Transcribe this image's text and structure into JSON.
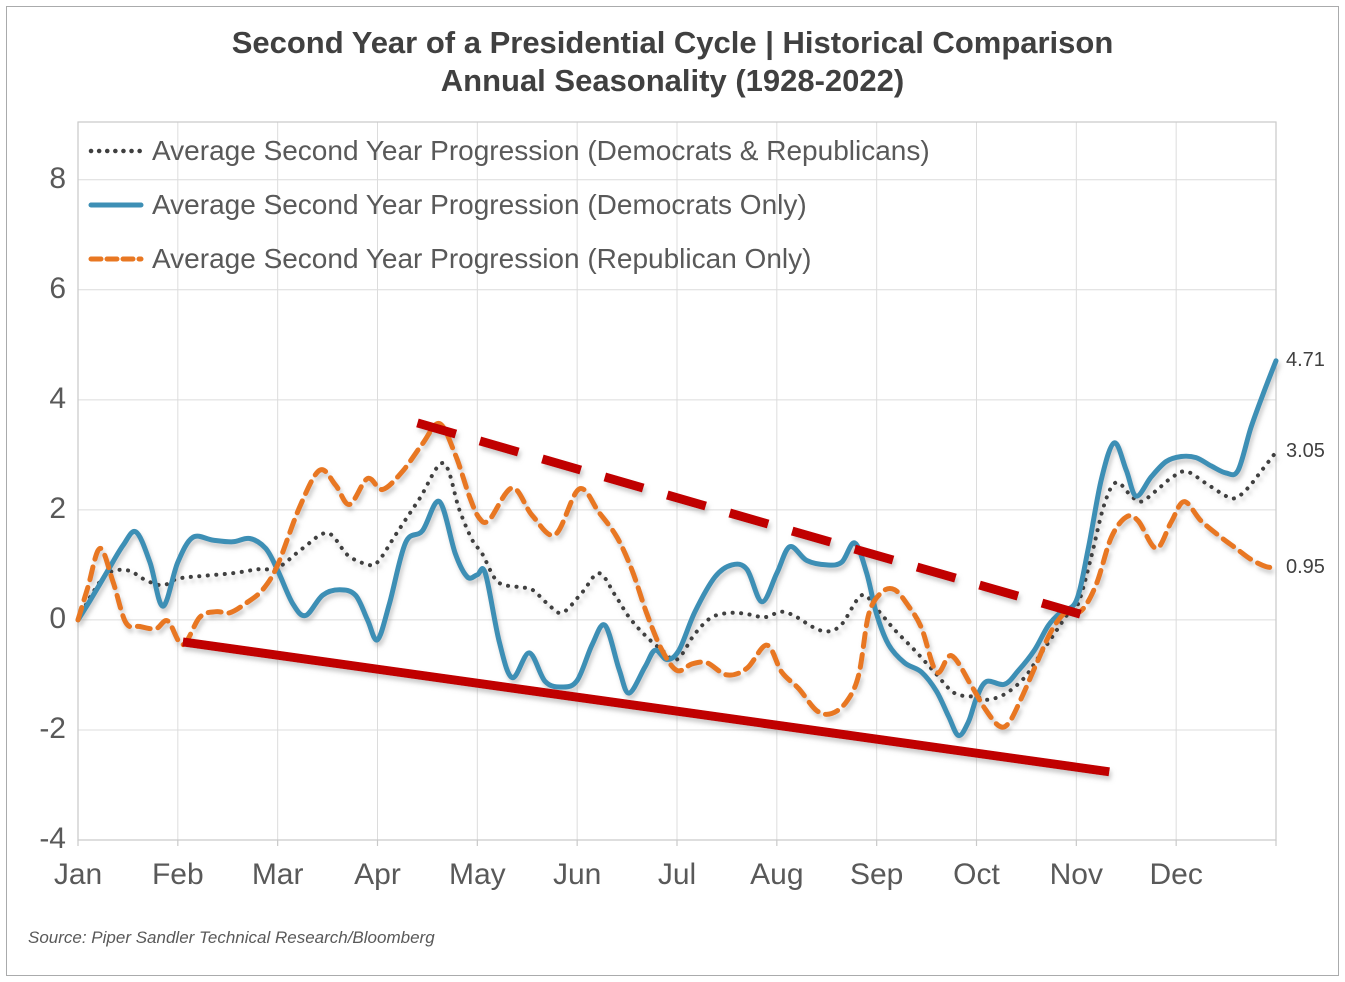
{
  "title": {
    "line1": "Second Year of a Presidential Cycle | Historical Comparison",
    "line2": "Annual Seasonality (1928-2022)"
  },
  "source": "Source: Piper Sandler Technical Research/Bloomberg",
  "colors": {
    "average_both": "#3f3f3f",
    "democrats": "#3d8fb5",
    "republicans": "#e87722",
    "trendline_red": "#c00000",
    "grid": "#dcdcdc",
    "plot_border": "#c9c9c9",
    "text_dark": "#404040",
    "text_gray": "#595959"
  },
  "legend": {
    "items": [
      {
        "label": "Average Second Year Progression (Democrats & Republicans)",
        "style": "dotted",
        "color": "#3f3f3f"
      },
      {
        "label": "Average Second Year Progression (Democrats Only)",
        "style": "solid",
        "color": "#3d8fb5"
      },
      {
        "label": "Average Second Year Progression (Republican Only)",
        "style": "dashed",
        "color": "#e87722"
      }
    ]
  },
  "chart_data": {
    "type": "line",
    "title": "Second Year of a Presidential Cycle | Historical Comparison — Annual Seasonality (1928-2022)",
    "x_unit": "months, 0 = Jan 1 through 12 = Dec 31",
    "x_tick_labels": [
      "Jan",
      "Feb",
      "Mar",
      "Apr",
      "May",
      "Jun",
      "Jul",
      "Aug",
      "Sep",
      "Oct",
      "Nov",
      "Dec"
    ],
    "y_ticks": [
      8,
      6,
      4,
      2,
      0,
      -2,
      -4
    ],
    "ylim": [
      -4,
      9.05
    ],
    "xlim": [
      0,
      12
    ],
    "grid": true,
    "legend_position": "top-left-inside",
    "series": [
      {
        "name": "Average Second Year Progression (Democrats & Republicans)",
        "color": "#3f3f3f",
        "dash": "dot",
        "width": 4,
        "end_value": 3.05,
        "points": [
          [
            0,
            0
          ],
          [
            0.15,
            0.5
          ],
          [
            0.3,
            0.85
          ],
          [
            0.5,
            0.9
          ],
          [
            0.68,
            0.72
          ],
          [
            0.85,
            0.63
          ],
          [
            1.0,
            0.75
          ],
          [
            1.25,
            0.8
          ],
          [
            1.55,
            0.85
          ],
          [
            1.8,
            0.92
          ],
          [
            2.0,
            0.95
          ],
          [
            2.25,
            1.3
          ],
          [
            2.5,
            1.58
          ],
          [
            2.7,
            1.18
          ],
          [
            2.88,
            1.02
          ],
          [
            3.0,
            1.05
          ],
          [
            3.2,
            1.6
          ],
          [
            3.42,
            2.2
          ],
          [
            3.66,
            2.85
          ],
          [
            3.82,
            2.0
          ],
          [
            3.95,
            1.45
          ],
          [
            4.05,
            1.2
          ],
          [
            4.2,
            0.7
          ],
          [
            4.4,
            0.6
          ],
          [
            4.55,
            0.55
          ],
          [
            4.7,
            0.3
          ],
          [
            4.85,
            0.13
          ],
          [
            5.05,
            0.5
          ],
          [
            5.22,
            0.85
          ],
          [
            5.38,
            0.45
          ],
          [
            5.52,
            0.05
          ],
          [
            5.68,
            -0.28
          ],
          [
            5.85,
            -0.55
          ],
          [
            6.0,
            -0.72
          ],
          [
            6.18,
            -0.25
          ],
          [
            6.35,
            0.05
          ],
          [
            6.55,
            0.13
          ],
          [
            6.72,
            0.1
          ],
          [
            6.88,
            0.05
          ],
          [
            7.05,
            0.15
          ],
          [
            7.2,
            0.05
          ],
          [
            7.35,
            -0.12
          ],
          [
            7.5,
            -0.21
          ],
          [
            7.65,
            -0.08
          ],
          [
            7.85,
            0.45
          ],
          [
            8.0,
            0.2
          ],
          [
            8.18,
            -0.18
          ],
          [
            8.38,
            -0.55
          ],
          [
            8.58,
            -0.95
          ],
          [
            8.78,
            -1.33
          ],
          [
            9.0,
            -1.4
          ],
          [
            9.12,
            -1.45
          ],
          [
            9.3,
            -1.33
          ],
          [
            9.48,
            -1.05
          ],
          [
            9.62,
            -0.68
          ],
          [
            9.78,
            -0.25
          ],
          [
            9.92,
            0.12
          ],
          [
            10.02,
            0.3
          ],
          [
            10.15,
            1.15
          ],
          [
            10.28,
            2.1
          ],
          [
            10.4,
            2.5
          ],
          [
            10.55,
            2.25
          ],
          [
            10.65,
            2.15
          ],
          [
            10.8,
            2.35
          ],
          [
            10.95,
            2.58
          ],
          [
            11.1,
            2.7
          ],
          [
            11.3,
            2.48
          ],
          [
            11.5,
            2.25
          ],
          [
            11.6,
            2.22
          ],
          [
            11.72,
            2.4
          ],
          [
            11.85,
            2.7
          ],
          [
            12,
            3.05
          ]
        ]
      },
      {
        "name": "Average Second Year Progression (Democrats Only)",
        "color": "#3d8fb5",
        "dash": "solid",
        "width": 5,
        "end_value": 4.71,
        "points": [
          [
            0,
            0
          ],
          [
            0.12,
            0.35
          ],
          [
            0.3,
            0.9
          ],
          [
            0.45,
            1.35
          ],
          [
            0.58,
            1.6
          ],
          [
            0.72,
            1.05
          ],
          [
            0.85,
            0.25
          ],
          [
            1.0,
            1.05
          ],
          [
            1.15,
            1.5
          ],
          [
            1.35,
            1.45
          ],
          [
            1.55,
            1.42
          ],
          [
            1.72,
            1.48
          ],
          [
            1.88,
            1.3
          ],
          [
            2.0,
            0.9
          ],
          [
            2.15,
            0.3
          ],
          [
            2.28,
            0.08
          ],
          [
            2.45,
            0.45
          ],
          [
            2.62,
            0.55
          ],
          [
            2.78,
            0.45
          ],
          [
            2.9,
            0.0
          ],
          [
            3.0,
            -0.36
          ],
          [
            3.12,
            0.3
          ],
          [
            3.28,
            1.4
          ],
          [
            3.45,
            1.62
          ],
          [
            3.62,
            2.15
          ],
          [
            3.78,
            1.2
          ],
          [
            3.9,
            0.78
          ],
          [
            4.0,
            0.82
          ],
          [
            4.08,
            0.85
          ],
          [
            4.22,
            -0.4
          ],
          [
            4.35,
            -1.05
          ],
          [
            4.52,
            -0.6
          ],
          [
            4.68,
            -1.12
          ],
          [
            4.85,
            -1.22
          ],
          [
            5.0,
            -1.1
          ],
          [
            5.15,
            -0.45
          ],
          [
            5.28,
            -0.1
          ],
          [
            5.42,
            -0.9
          ],
          [
            5.52,
            -1.33
          ],
          [
            5.68,
            -0.85
          ],
          [
            5.78,
            -0.55
          ],
          [
            5.9,
            -0.72
          ],
          [
            6.02,
            -0.55
          ],
          [
            6.18,
            0.15
          ],
          [
            6.38,
            0.78
          ],
          [
            6.55,
            1.0
          ],
          [
            6.7,
            0.92
          ],
          [
            6.85,
            0.33
          ],
          [
            7.0,
            0.85
          ],
          [
            7.13,
            1.33
          ],
          [
            7.3,
            1.08
          ],
          [
            7.5,
            1.0
          ],
          [
            7.65,
            1.05
          ],
          [
            7.78,
            1.4
          ],
          [
            7.9,
            0.85
          ],
          [
            8.0,
            0.1
          ],
          [
            8.12,
            -0.45
          ],
          [
            8.28,
            -0.78
          ],
          [
            8.45,
            -0.95
          ],
          [
            8.6,
            -1.3
          ],
          [
            8.72,
            -1.75
          ],
          [
            8.82,
            -2.1
          ],
          [
            8.92,
            -1.85
          ],
          [
            9.0,
            -1.42
          ],
          [
            9.1,
            -1.12
          ],
          [
            9.28,
            -1.17
          ],
          [
            9.42,
            -0.92
          ],
          [
            9.58,
            -0.55
          ],
          [
            9.72,
            -0.1
          ],
          [
            9.85,
            0.15
          ],
          [
            10.0,
            0.35
          ],
          [
            10.12,
            1.3
          ],
          [
            10.25,
            2.55
          ],
          [
            10.38,
            3.22
          ],
          [
            10.5,
            2.72
          ],
          [
            10.6,
            2.25
          ],
          [
            10.75,
            2.6
          ],
          [
            10.9,
            2.88
          ],
          [
            11.05,
            2.97
          ],
          [
            11.2,
            2.95
          ],
          [
            11.35,
            2.8
          ],
          [
            11.5,
            2.67
          ],
          [
            11.62,
            2.72
          ],
          [
            11.75,
            3.5
          ],
          [
            11.88,
            4.15
          ],
          [
            12,
            4.71
          ]
        ]
      },
      {
        "name": "Average Second Year Progression (Republican Only)",
        "color": "#e87722",
        "dash": "dash",
        "width": 5,
        "end_value": 0.95,
        "points": [
          [
            0,
            0
          ],
          [
            0.1,
            0.6
          ],
          [
            0.22,
            1.3
          ],
          [
            0.35,
            0.7
          ],
          [
            0.48,
            -0.05
          ],
          [
            0.62,
            -0.12
          ],
          [
            0.78,
            -0.16
          ],
          [
            0.9,
            -0.02
          ],
          [
            1.05,
            -0.45
          ],
          [
            1.22,
            0.05
          ],
          [
            1.38,
            0.15
          ],
          [
            1.52,
            0.13
          ],
          [
            1.68,
            0.3
          ],
          [
            1.85,
            0.55
          ],
          [
            2.0,
            1.0
          ],
          [
            2.22,
            2.05
          ],
          [
            2.42,
            2.72
          ],
          [
            2.58,
            2.45
          ],
          [
            2.72,
            2.1
          ],
          [
            2.9,
            2.57
          ],
          [
            3.05,
            2.37
          ],
          [
            3.25,
            2.7
          ],
          [
            3.45,
            3.2
          ],
          [
            3.62,
            3.57
          ],
          [
            3.78,
            3.0
          ],
          [
            3.92,
            2.25
          ],
          [
            4.02,
            1.85
          ],
          [
            4.12,
            1.82
          ],
          [
            4.35,
            2.4
          ],
          [
            4.55,
            1.9
          ],
          [
            4.78,
            1.55
          ],
          [
            5.02,
            2.38
          ],
          [
            5.22,
            1.95
          ],
          [
            5.4,
            1.5
          ],
          [
            5.55,
            0.9
          ],
          [
            5.7,
            0.1
          ],
          [
            5.85,
            -0.55
          ],
          [
            6.0,
            -0.92
          ],
          [
            6.15,
            -0.8
          ],
          [
            6.3,
            -0.78
          ],
          [
            6.5,
            -1.0
          ],
          [
            6.7,
            -0.88
          ],
          [
            6.9,
            -0.46
          ],
          [
            7.05,
            -0.95
          ],
          [
            7.22,
            -1.25
          ],
          [
            7.4,
            -1.65
          ],
          [
            7.55,
            -1.7
          ],
          [
            7.7,
            -1.48
          ],
          [
            7.82,
            -1.0
          ],
          [
            7.92,
            0.1
          ],
          [
            8.05,
            0.5
          ],
          [
            8.18,
            0.55
          ],
          [
            8.32,
            0.25
          ],
          [
            8.45,
            -0.15
          ],
          [
            8.6,
            -0.95
          ],
          [
            8.75,
            -0.65
          ],
          [
            8.95,
            -1.2
          ],
          [
            9.08,
            -1.6
          ],
          [
            9.22,
            -1.92
          ],
          [
            9.32,
            -1.88
          ],
          [
            9.45,
            -1.42
          ],
          [
            9.6,
            -0.8
          ],
          [
            9.75,
            -0.2
          ],
          [
            9.9,
            0.15
          ],
          [
            10.05,
            0.17
          ],
          [
            10.2,
            0.65
          ],
          [
            10.35,
            1.5
          ],
          [
            10.5,
            1.87
          ],
          [
            10.62,
            1.8
          ],
          [
            10.8,
            1.3
          ],
          [
            10.95,
            1.78
          ],
          [
            11.08,
            2.15
          ],
          [
            11.25,
            1.8
          ],
          [
            11.45,
            1.5
          ],
          [
            11.6,
            1.3
          ],
          [
            11.75,
            1.1
          ],
          [
            11.9,
            0.97
          ],
          [
            12,
            0.95
          ]
        ]
      }
    ],
    "trendlines": [
      {
        "name": "upper-resistance-trendline",
        "color": "#c00000",
        "dash": "dash",
        "width": 9,
        "from": [
          3.4,
          3.58
        ],
        "to": [
          10.28,
          -0.02
        ]
      },
      {
        "name": "lower-support-trendline",
        "color": "#c00000",
        "dash": "solid",
        "width": 9,
        "from": [
          1.05,
          -0.4
        ],
        "to": [
          10.33,
          -2.76
        ]
      }
    ],
    "end_labels": [
      {
        "text": "4.71",
        "series_index": 1
      },
      {
        "text": "3.05",
        "series_index": 0
      },
      {
        "text": "0.95",
        "series_index": 2
      }
    ]
  }
}
